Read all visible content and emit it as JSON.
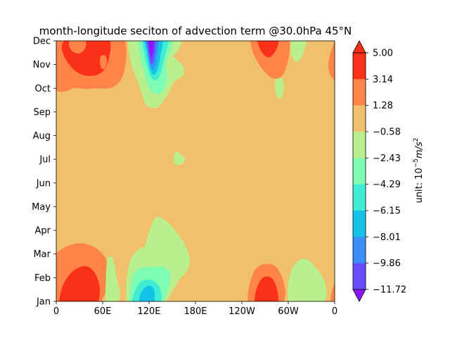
{
  "chart_data": {
    "type": "contourf",
    "title": "month-longitude seciton of advection term @30.0hPa 45°N",
    "xlabel": "",
    "ylabel": "",
    "x_ticks": [
      {
        "lon": 0,
        "label": "0"
      },
      {
        "lon": 60,
        "label": "60E"
      },
      {
        "lon": 120,
        "label": "120E"
      },
      {
        "lon": 180,
        "label": "180E"
      },
      {
        "lon": 240,
        "label": "120W"
      },
      {
        "lon": 300,
        "label": "60W"
      },
      {
        "lon": 360,
        "label": "0"
      }
    ],
    "y_ticks": [
      "Jan",
      "Feb",
      "Mar",
      "Apr",
      "May",
      "Jun",
      "Jul",
      "Aug",
      "Sep",
      "Oct",
      "Nov",
      "Dec"
    ],
    "xlim": [
      0,
      360
    ],
    "colorbar": {
      "label_prefix": "unit: ",
      "label_unit": "10",
      "label_exp": "−5",
      "label_tail": "m/s",
      "label_tail_exp": "2",
      "levels": [
        "5.00",
        "3.14",
        "1.28",
        "−0.58",
        "−2.43",
        "−4.29",
        "−6.15",
        "−8.01",
        "−9.86",
        "−11.72"
      ],
      "level_values": [
        5.0,
        3.14,
        1.28,
        -0.58,
        -2.43,
        -4.29,
        -6.15,
        -8.01,
        -9.86,
        -11.72
      ],
      "colors_top_to_bottom": [
        "#fb3018",
        "#fe8547",
        "#f0c06c",
        "#b9ef8c",
        "#7ffcb4",
        "#40ecd4",
        "#14c4e6",
        "#3a8ef6",
        "#6a4cfe",
        "#8c14fd"
      ],
      "extend": "both"
    },
    "background_value_band": "−0.58 to 1.28",
    "features": [
      {
        "region": "0–55E, Oct–Dec",
        "value_range": "1.28 to 5.00",
        "note": "warm band near top-left, peak > 3.14 near 20–30E Nov–Dec"
      },
      {
        "region": "0–60E, Jan–Mar",
        "value_range": "1.28 to 5.00",
        "note": "warm band near bottom-left, peak > 3.14 near 20E Jan"
      },
      {
        "region": "~115–125E, Sep–Dec",
        "value_range": "−11.72 to −0.58",
        "note": "strong negative tongue centered ~120E"
      },
      {
        "region": "~85–165E, Jan–Apr",
        "value_range": "−8.01 to −0.58",
        "note": "negative area with minimum near 120E Jan"
      },
      {
        "region": "~225–270E, Nov–Dec",
        "value_range": "1.28 to 5.00",
        "note": "positive patch near 80W"
      },
      {
        "region": "~225–270E, Jan–Feb",
        "value_range": "1.28 to 5.00",
        "note": "positive patch near 80W"
      },
      {
        "region": "~290–315E, Jan–Mar",
        "value_range": "−2.43 to −0.58",
        "note": "weak negative patch near 60W"
      }
    ]
  }
}
